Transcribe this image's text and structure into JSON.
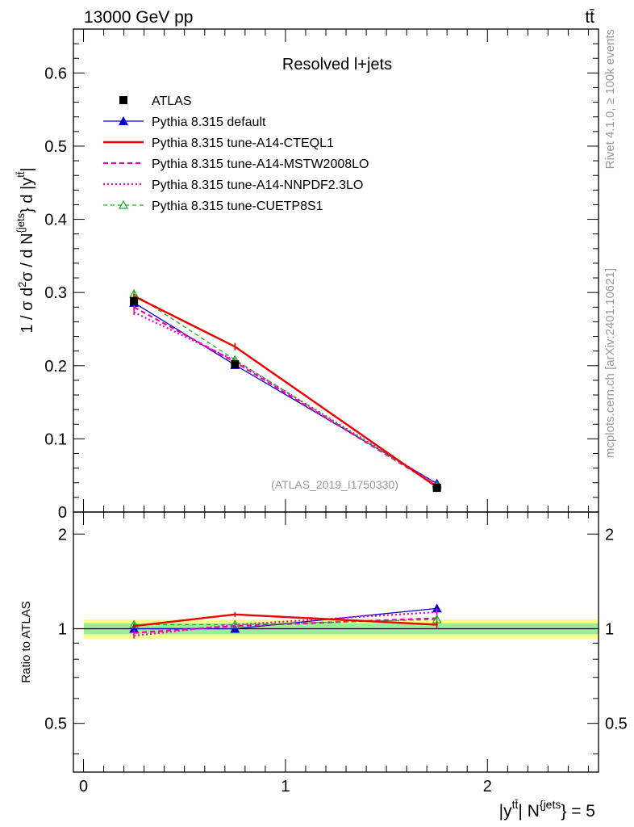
{
  "header": {
    "left": "13000 GeV pp",
    "right": "tt̄"
  },
  "side_labels": {
    "rivet": "Rivet 4.1.0, ≥ 100k events",
    "mcplots": "mcplots.cern.ch [arXiv:2401.10621]"
  },
  "colors": {
    "atlas": "#000000",
    "default": "#0000cc",
    "cteql1": "#ee0000",
    "mstw": "#ee00aa",
    "nnpdf": "#ff00cc",
    "cuetp8s1": "#22aa22",
    "band_inner": "#99ee99",
    "band_outer": "#ffff88",
    "watermark": "#999999"
  },
  "chart_data": [
    {
      "type": "line",
      "title": "Resolved l+jets",
      "ylabel": "1 / σ d²σ / d N^{jets} } d |y^{tt̄}|",
      "xlabel": "|y^{tt̄}| N^{jets}} = 5",
      "watermark": "(ATLAS_2019_I1750330)",
      "xlim": [
        -0.05,
        2.55
      ],
      "ylim": [
        0,
        0.66
      ],
      "yticks": [
        0,
        0.1,
        0.2,
        0.3,
        0.4,
        0.5,
        0.6
      ],
      "ytick_labels": [
        "0",
        "0.1",
        "0.2",
        "0.3",
        "0.4",
        "0.5",
        "0.6"
      ],
      "x": [
        0.25,
        0.75,
        1.75
      ],
      "series": [
        {
          "name": "ATLAS",
          "key": "atlas",
          "values": [
            0.288,
            0.202,
            0.033
          ],
          "err": [
            0.004,
            0.003,
            0.001
          ]
        },
        {
          "name": "Pythia 8.315 default",
          "key": "default",
          "values": [
            0.286,
            0.201,
            0.039
          ],
          "err": [
            0.003,
            0.002,
            0.001
          ]
        },
        {
          "name": "Pythia 8.315 tune-A14-CTEQL1",
          "key": "cteql1",
          "values": [
            0.295,
            0.226,
            0.034
          ],
          "err": [
            0.003,
            0.005,
            0.001
          ]
        },
        {
          "name": "Pythia 8.315 tune-A14-MSTW2008LO",
          "key": "mstw",
          "values": [
            0.28,
            0.205,
            0.036
          ],
          "err": [
            0.004,
            0.003,
            0.001
          ]
        },
        {
          "name": "Pythia 8.315 tune-A14-NNPDF2.3LO",
          "key": "nnpdf",
          "values": [
            0.273,
            0.207,
            0.038
          ],
          "err": [
            0.004,
            0.003,
            0.001
          ]
        },
        {
          "name": "Pythia 8.315 tune-CUETP8S1",
          "key": "cuetp8s1",
          "values": [
            0.298,
            0.208,
            0.036
          ],
          "err": [
            0.004,
            0.003,
            0.001
          ]
        }
      ]
    },
    {
      "type": "line",
      "ylabel": "Ratio to ATLAS",
      "xlim": [
        -0.05,
        2.55
      ],
      "ylim": [
        0.35,
        2.35
      ],
      "yticks": [
        0.5,
        1,
        2
      ],
      "ytick_labels": [
        "0.5",
        "1",
        "2"
      ],
      "xticks": [
        0,
        1,
        2
      ],
      "xtick_labels": [
        "0",
        "1",
        "2"
      ],
      "x": [
        0.25,
        0.75,
        1.75
      ],
      "band_inner": 0.04,
      "band_outer": 0.07,
      "series": [
        {
          "name": "Pythia 8.315 default",
          "key": "default",
          "values": [
            1.0,
            1.0,
            1.16
          ],
          "err": [
            0.02,
            0.015,
            0.03
          ]
        },
        {
          "name": "Pythia 8.315 tune-A14-CTEQL1",
          "key": "cteql1",
          "values": [
            1.02,
            1.11,
            1.03
          ],
          "err": [
            0.015,
            0.02,
            0.025
          ]
        },
        {
          "name": "Pythia 8.315 tune-A14-MSTW2008LO",
          "key": "mstw",
          "values": [
            0.97,
            1.02,
            1.08
          ],
          "err": [
            0.02,
            0.015,
            0.03
          ]
        },
        {
          "name": "Pythia 8.315 tune-A14-NNPDF2.3LO",
          "key": "nnpdf",
          "values": [
            0.95,
            1.03,
            1.13
          ],
          "err": [
            0.02,
            0.015,
            0.03
          ]
        },
        {
          "name": "Pythia 8.315 tune-CUETP8S1",
          "key": "cuetp8s1",
          "values": [
            1.03,
            1.03,
            1.07
          ],
          "err": [
            0.02,
            0.015,
            0.03
          ]
        }
      ]
    }
  ]
}
